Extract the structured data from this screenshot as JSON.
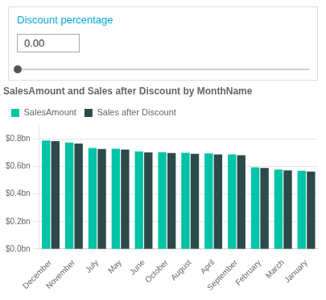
{
  "chart_data": {
    "type": "bar",
    "title": "SalesAmount and Sales after Discount by MonthName",
    "annotations": [
      "Discount percentage",
      "0.00"
    ],
    "categories": [
      "December",
      "November",
      "July",
      "May",
      "June",
      "October",
      "August",
      "April",
      "September",
      "February",
      "March",
      "January"
    ],
    "series": [
      {
        "name": "SalesAmount",
        "color": "#00c4a7",
        "values": [
          0.79,
          0.775,
          0.735,
          0.73,
          0.71,
          0.705,
          0.7,
          0.695,
          0.688,
          0.595,
          0.578,
          0.57
        ]
      },
      {
        "name": "Sales after Discount",
        "color": "#2d4a4a",
        "values": [
          0.785,
          0.768,
          0.728,
          0.723,
          0.703,
          0.698,
          0.693,
          0.688,
          0.682,
          0.59,
          0.572,
          0.564
        ]
      }
    ],
    "ylim": [
      0,
      0.9
    ],
    "yticks": [
      {
        "value": 0.0,
        "label": "$0.0bn"
      },
      {
        "value": 0.2,
        "label": "$0.2bn"
      },
      {
        "value": 0.4,
        "label": "$0.4bn"
      },
      {
        "value": 0.6,
        "label": "$0.6bn"
      },
      {
        "value": 0.8,
        "label": "$0.8bn"
      }
    ],
    "grid": true,
    "legend": "upper left"
  }
}
